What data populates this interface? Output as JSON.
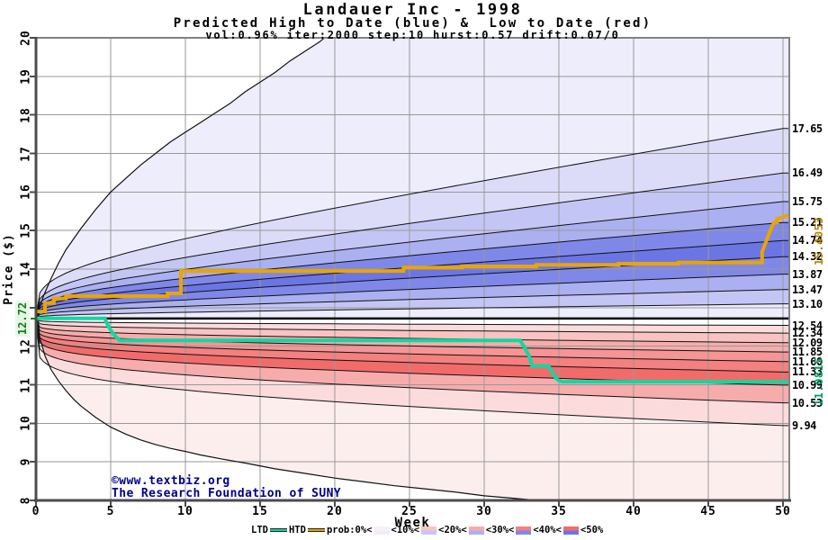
{
  "chart_data": {
    "type": "area",
    "title": "Landauer Inc - 1998",
    "subtitle": "Predicted High to Date (blue) &  Low to Date (red)",
    "params_line": "vol:0.96% iter:2000 step:10 hurst:0.57 drift:0.07/0",
    "xlabel": "Week",
    "ylabel": "Price ($)",
    "xlim": [
      0,
      50.42
    ],
    "ylim": [
      8,
      20
    ],
    "x_ticks": [
      0,
      5,
      10,
      15,
      20,
      25,
      30,
      35,
      40,
      45,
      50
    ],
    "y_ticks": [
      8,
      9,
      10,
      11,
      12,
      13,
      14,
      15,
      16,
      17,
      18,
      19,
      20
    ],
    "weeks_range": [
      0,
      50
    ],
    "start_price": 12.72,
    "start_label": "12.72",
    "htd_final": 15.4053,
    "htd_final_label": "15.4053",
    "ltd_final": 11.0815,
    "ltd_final_label": "11.0815",
    "high_contours": [
      {
        "end": 17.65,
        "label": "17.65"
      },
      {
        "end": 16.49,
        "label": "16.49"
      },
      {
        "end": 15.75,
        "label": "15.75"
      },
      {
        "end": 15.21,
        "label": "15.21"
      },
      {
        "end": 14.74,
        "label": "14.74"
      },
      {
        "end": 14.32,
        "label": "14.32"
      },
      {
        "end": 13.87,
        "label": "13.87"
      },
      {
        "end": 13.47,
        "label": "13.47"
      },
      {
        "end": 13.1,
        "label": "13.10"
      }
    ],
    "low_contours": [
      {
        "end": 12.54,
        "label": "12.54"
      },
      {
        "end": 12.34,
        "label": "12.34"
      },
      {
        "end": 12.09,
        "label": "12.09"
      },
      {
        "end": 11.85,
        "label": "11.85"
      },
      {
        "end": 11.6,
        "label": "11.60"
      },
      {
        "end": 11.33,
        "label": "11.33"
      },
      {
        "end": 10.99,
        "label": "10.99"
      },
      {
        "end": 10.53,
        "label": "10.53"
      },
      {
        "end": 9.94,
        "label": "9.94"
      }
    ],
    "fan_shape": {
      "high": {
        "a": 0.5,
        "p1": 0.25,
        "p2": 1.1
      },
      "low": {
        "a": 0.8,
        "p1": 0.15,
        "p2": 1.0
      }
    },
    "envelope_high": [
      [
        0,
        12.72
      ],
      [
        0.5,
        13.3
      ],
      [
        1,
        13.75
      ],
      [
        1.5,
        14.15
      ],
      [
        2,
        14.5
      ],
      [
        3,
        15.05
      ],
      [
        4,
        15.55
      ],
      [
        5,
        16.0
      ],
      [
        6,
        16.35
      ],
      [
        7,
        16.7
      ],
      [
        8,
        17.0
      ],
      [
        9,
        17.3
      ],
      [
        10,
        17.55
      ],
      [
        11,
        17.8
      ],
      [
        12,
        18.05
      ],
      [
        13,
        18.3
      ],
      [
        14,
        18.6
      ],
      [
        15,
        18.85
      ],
      [
        16,
        19.1
      ],
      [
        17,
        19.4
      ],
      [
        18,
        19.65
      ],
      [
        19,
        19.9
      ],
      [
        19.6,
        20.1
      ]
    ],
    "envelope_low": [
      [
        0,
        12.72
      ],
      [
        0.3,
        12.15
      ],
      [
        0.6,
        11.75
      ],
      [
        1,
        11.4
      ],
      [
        1.5,
        11.1
      ],
      [
        2,
        10.85
      ],
      [
        2.5,
        10.63
      ],
      [
        3,
        10.45
      ],
      [
        4,
        10.15
      ],
      [
        5,
        9.9
      ],
      [
        6,
        9.72
      ],
      [
        7,
        9.57
      ],
      [
        8,
        9.45
      ],
      [
        9,
        9.35
      ],
      [
        10,
        9.27
      ],
      [
        11,
        9.18
      ],
      [
        12.5,
        9.07
      ],
      [
        14,
        8.97
      ],
      [
        16,
        8.82
      ],
      [
        18,
        8.7
      ],
      [
        20,
        8.58
      ],
      [
        22,
        8.48
      ],
      [
        24,
        8.38
      ],
      [
        26,
        8.3
      ],
      [
        28,
        8.22
      ],
      [
        30,
        8.12
      ],
      [
        33,
        8.02
      ],
      [
        36,
        7.95
      ],
      [
        40,
        7.9
      ],
      [
        50,
        7.85
      ]
    ],
    "bands_high": [
      {
        "upper": "env",
        "lower": 17.65,
        "shade": 0
      },
      {
        "upper": 17.65,
        "lower": 16.49,
        "shade": 1
      },
      {
        "upper": 16.49,
        "lower": 15.75,
        "shade": 2
      },
      {
        "upper": 15.75,
        "lower": 15.21,
        "shade": 3
      },
      {
        "upper": 15.21,
        "lower": 14.74,
        "shade": 5
      },
      {
        "upper": 14.74,
        "lower": 14.32,
        "shade": 6
      },
      {
        "upper": 14.32,
        "lower": 13.87,
        "shade": 5
      },
      {
        "upper": 13.87,
        "lower": 13.47,
        "shade": 3
      },
      {
        "upper": 13.47,
        "lower": 13.1,
        "shade": 2
      },
      {
        "upper": 13.1,
        "lower": "base",
        "shade": 0
      }
    ],
    "bands_low": [
      {
        "upper": 12.54,
        "lower": 12.34,
        "shade": 1
      },
      {
        "upper": 12.34,
        "lower": 12.09,
        "shade": 2
      },
      {
        "upper": 12.09,
        "lower": 11.85,
        "shade": 3
      },
      {
        "upper": 11.85,
        "lower": 11.6,
        "shade": 4
      },
      {
        "upper": 11.6,
        "lower": 11.33,
        "shade": 5
      },
      {
        "upper": 11.33,
        "lower": 10.99,
        "shade": 6
      },
      {
        "upper": 10.99,
        "lower": 10.53,
        "shade": 3
      },
      {
        "upper": 10.53,
        "lower": 9.94,
        "shade": 1
      },
      {
        "upper": 9.94,
        "lower": "env",
        "shade": 0
      }
    ],
    "htd_points": [
      [
        0,
        12.9
      ],
      [
        0.6,
        12.9
      ],
      [
        0.6,
        13.12
      ],
      [
        1.2,
        13.12
      ],
      [
        1.2,
        13.24
      ],
      [
        2,
        13.24
      ],
      [
        2,
        13.3
      ],
      [
        8.8,
        13.3
      ],
      [
        8.8,
        13.37
      ],
      [
        9.7,
        13.37
      ],
      [
        9.7,
        13.95
      ],
      [
        24.6,
        13.95
      ],
      [
        24.6,
        14.04
      ],
      [
        28.5,
        14.04
      ],
      [
        28.5,
        14.07
      ],
      [
        33.5,
        14.07
      ],
      [
        33.5,
        14.11
      ],
      [
        39,
        14.11
      ],
      [
        39,
        14.14
      ],
      [
        43,
        14.14
      ],
      [
        43,
        14.17
      ],
      [
        48.6,
        14.17
      ],
      [
        48.6,
        14.45
      ],
      [
        48.9,
        14.75
      ],
      [
        49.2,
        15.05
      ],
      [
        49.4,
        15.21
      ],
      [
        49.6,
        15.21
      ],
      [
        49.6,
        15.3
      ],
      [
        50,
        15.35
      ],
      [
        50.42,
        15.4053
      ]
    ],
    "ltd_points": [
      [
        0,
        12.72
      ],
      [
        4.6,
        12.72
      ],
      [
        4.8,
        12.55
      ],
      [
        5,
        12.42
      ],
      [
        5.3,
        12.26
      ],
      [
        5.6,
        12.15
      ],
      [
        32.4,
        12.15
      ],
      [
        32.7,
        11.97
      ],
      [
        33,
        11.75
      ],
      [
        33.2,
        11.49
      ],
      [
        34.3,
        11.49
      ],
      [
        34.6,
        11.28
      ],
      [
        34.9,
        11.13
      ],
      [
        35.2,
        11.08
      ],
      [
        50.42,
        11.08
      ]
    ]
  },
  "colors": {
    "blue_shades": [
      "#ededfc",
      "#dcdcf9",
      "#c3c6f5",
      "#aab0f0",
      "#929aec",
      "#7f88e8",
      "#6b76e4"
    ],
    "red_shades": [
      "#fdeeee",
      "#fbdbdb",
      "#f9c3c3",
      "#f7acac",
      "#f59595",
      "#f48080",
      "#f26b6b"
    ],
    "htd": "#eba400",
    "ltd": "#12d7a0",
    "htd_label": "#b8860b",
    "ltd_label": "#009e60",
    "start_label": "#167a16",
    "start_label_bg": "#e4f9e4",
    "grid": "#999999",
    "axis": "#4c4c4c",
    "border": "#828282",
    "contour": "#111111",
    "base_line": "#000000",
    "copyright": "#00008b"
  },
  "copyright": {
    "line1": "©www.textbiz.org",
    "line2": "The Research Foundation of SUNY"
  },
  "legend": {
    "items": [
      {
        "label": "LTD",
        "swatch": "line",
        "color_key": "ltd"
      },
      {
        "label": "HTD",
        "swatch": "line",
        "color_key": "htd"
      },
      {
        "label": "prob:0%<",
        "swatch": "band",
        "shade": 0
      },
      {
        "label": "<10%<",
        "swatch": "band",
        "shade": 2
      },
      {
        "label": "<20%<",
        "swatch": "band",
        "shade": 3
      },
      {
        "label": "<30%<",
        "swatch": "band",
        "shade": 5
      },
      {
        "label": "<40%<",
        "swatch": "band",
        "shade": 6
      },
      {
        "label": "<50%",
        "swatch": "none"
      }
    ]
  }
}
